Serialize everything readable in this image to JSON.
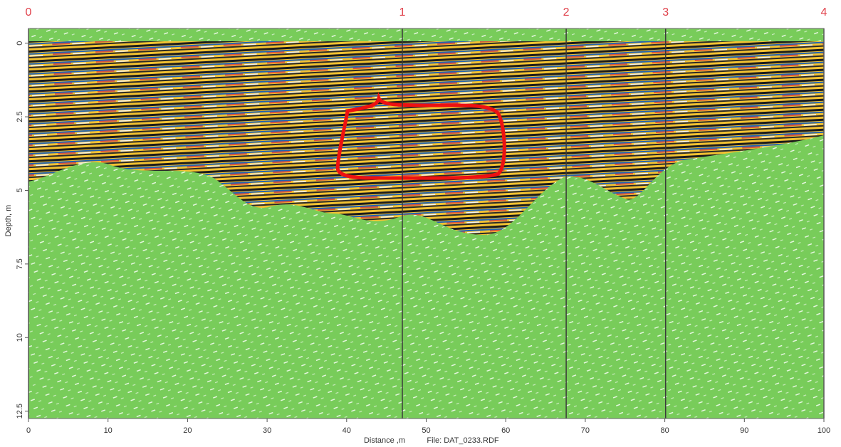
{
  "chart_data": {
    "type": "radargram",
    "xlabel": "Distance ,m",
    "file": "File: DAT_0233.RDF",
    "ylabel": "Depth, m",
    "xlim": [
      0,
      100
    ],
    "xticks": [
      0,
      10,
      20,
      30,
      40,
      50,
      60,
      70,
      80,
      90,
      100
    ],
    "ylim": [
      -0.5,
      12.75
    ],
    "yticks": [
      0,
      2.5,
      5,
      7.5,
      10,
      12.5
    ],
    "markers": [
      {
        "label": "0",
        "x": 0
      },
      {
        "label": "1",
        "x": 47
      },
      {
        "label": "2",
        "x": 67.6
      },
      {
        "label": "3",
        "x": 80.1
      },
      {
        "label": "4",
        "x": 100
      }
    ]
  }
}
